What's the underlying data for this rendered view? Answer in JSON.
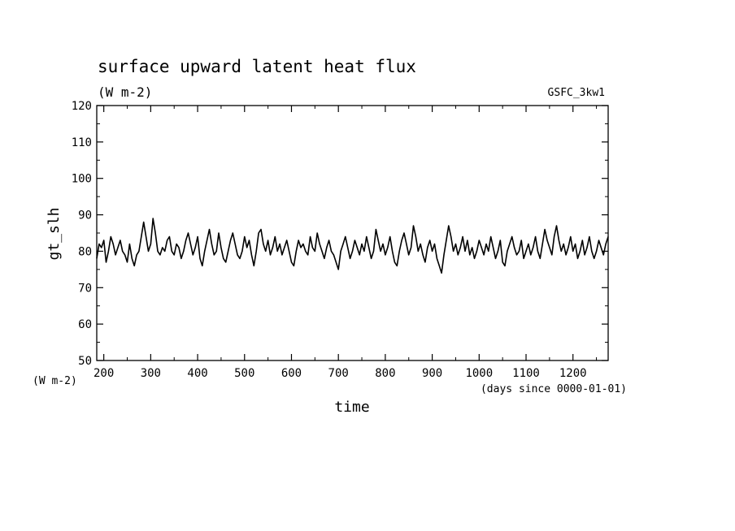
{
  "chart_data": {
    "type": "line",
    "title": "surface upward latent heat flux",
    "subtitle": "(W m-2)",
    "dataset_label": "GSFC_3kw1",
    "xlabel": "time",
    "x_units": "(days since 0000-01-01)",
    "ylabel": "gt_slh",
    "y_units": "(W m-2)",
    "xlim": [
      185,
      1275
    ],
    "ylim": [
      50,
      120
    ],
    "x_ticks": [
      200,
      300,
      400,
      500,
      600,
      700,
      800,
      900,
      1000,
      1100,
      1200
    ],
    "x_tick_labels": [
      "200",
      "300",
      "400",
      "500",
      "600",
      "700",
      "800",
      "900",
      "1000",
      "1100",
      "1200"
    ],
    "y_ticks": [
      50,
      60,
      70,
      80,
      90,
      100,
      110,
      120
    ],
    "y_tick_labels": [
      "50",
      "60",
      "70",
      "80",
      "90",
      "100",
      "110",
      "120"
    ],
    "grid": false,
    "series": [
      {
        "color": "#000000",
        "x": [
          185,
          190,
          195,
          200,
          205,
          210,
          215,
          220,
          225,
          230,
          235,
          240,
          245,
          250,
          255,
          260,
          265,
          270,
          275,
          280,
          285,
          290,
          295,
          300,
          305,
          310,
          315,
          320,
          325,
          330,
          335,
          340,
          345,
          350,
          355,
          360,
          365,
          370,
          375,
          380,
          385,
          390,
          395,
          400,
          405,
          410,
          415,
          420,
          425,
          430,
          435,
          440,
          445,
          450,
          455,
          460,
          465,
          470,
          475,
          480,
          485,
          490,
          495,
          500,
          505,
          510,
          515,
          520,
          525,
          530,
          535,
          540,
          545,
          550,
          555,
          560,
          565,
          570,
          575,
          580,
          585,
          590,
          595,
          600,
          605,
          610,
          615,
          620,
          625,
          630,
          635,
          640,
          645,
          650,
          655,
          660,
          665,
          670,
          675,
          680,
          685,
          690,
          695,
          700,
          705,
          710,
          715,
          720,
          725,
          730,
          735,
          740,
          745,
          750,
          755,
          760,
          765,
          770,
          775,
          780,
          785,
          790,
          795,
          800,
          805,
          810,
          815,
          820,
          825,
          830,
          835,
          840,
          845,
          850,
          855,
          860,
          865,
          870,
          875,
          880,
          885,
          890,
          895,
          900,
          905,
          910,
          915,
          920,
          925,
          930,
          935,
          940,
          945,
          950,
          955,
          960,
          965,
          970,
          975,
          980,
          985,
          990,
          995,
          1000,
          1005,
          1010,
          1015,
          1020,
          1025,
          1030,
          1035,
          1040,
          1045,
          1050,
          1055,
          1060,
          1065,
          1070,
          1075,
          1080,
          1085,
          1090,
          1095,
          1100,
          1105,
          1110,
          1115,
          1120,
          1125,
          1130,
          1135,
          1140,
          1145,
          1150,
          1155,
          1160,
          1165,
          1170,
          1175,
          1180,
          1185,
          1190,
          1195,
          1200,
          1205,
          1210,
          1215,
          1220,
          1225,
          1230,
          1235,
          1240,
          1245,
          1250,
          1255,
          1260,
          1265,
          1270,
          1275
        ],
        "y": [
          78,
          82,
          81,
          83,
          77,
          80,
          84,
          82,
          79,
          81,
          83,
          80,
          79,
          77,
          82,
          78,
          76,
          79,
          80,
          84,
          88,
          84,
          80,
          82,
          89,
          85,
          80,
          79,
          81,
          80,
          83,
          84,
          80,
          79,
          82,
          81,
          78,
          80,
          83,
          85,
          82,
          79,
          81,
          84,
          78,
          76,
          80,
          83,
          86,
          82,
          79,
          80,
          85,
          81,
          78,
          77,
          80,
          83,
          85,
          82,
          79,
          78,
          80,
          84,
          81,
          83,
          79,
          76,
          80,
          85,
          86,
          82,
          80,
          83,
          79,
          81,
          84,
          80,
          82,
          79,
          81,
          83,
          80,
          77,
          76,
          80,
          83,
          81,
          82,
          80,
          79,
          84,
          81,
          80,
          85,
          82,
          80,
          78,
          81,
          83,
          80,
          79,
          77,
          75,
          80,
          82,
          84,
          81,
          78,
          80,
          83,
          81,
          79,
          82,
          80,
          84,
          81,
          78,
          80,
          86,
          83,
          80,
          82,
          79,
          81,
          84,
          80,
          77,
          76,
          80,
          83,
          85,
          82,
          79,
          81,
          87,
          84,
          80,
          82,
          79,
          77,
          81,
          83,
          80,
          82,
          78,
          76,
          74,
          79,
          83,
          87,
          84,
          80,
          82,
          79,
          81,
          84,
          80,
          83,
          79,
          81,
          78,
          80,
          83,
          81,
          79,
          82,
          80,
          84,
          81,
          78,
          80,
          83,
          77,
          76,
          80,
          82,
          84,
          81,
          79,
          80,
          83,
          78,
          80,
          82,
          79,
          81,
          84,
          80,
          78,
          82,
          86,
          83,
          81,
          79,
          84,
          87,
          83,
          80,
          82,
          79,
          81,
          84,
          80,
          82,
          78,
          80,
          83,
          79,
          81,
          84,
          80,
          78,
          80,
          83,
          81,
          79,
          82,
          84
        ]
      }
    ]
  }
}
